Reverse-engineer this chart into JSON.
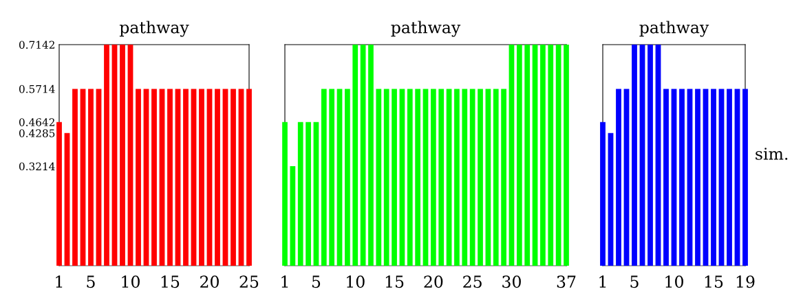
{
  "chart_data": [
    {
      "type": "bar",
      "title": "pathway",
      "x": [
        1,
        2,
        3,
        4,
        5,
        6,
        7,
        8,
        9,
        10,
        11,
        12,
        13,
        14,
        15,
        16,
        17,
        18,
        19,
        20,
        21,
        22,
        23,
        24,
        25
      ],
      "values": [
        0.4642,
        0.4285,
        0.5714,
        0.5714,
        0.5714,
        0.5714,
        0.7142,
        0.7142,
        0.7142,
        0.7142,
        0.5714,
        0.5714,
        0.5714,
        0.5714,
        0.5714,
        0.5714,
        0.5714,
        0.5714,
        0.5714,
        0.5714,
        0.5714,
        0.5714,
        0.5714,
        0.5714,
        0.5714
      ],
      "color": "#ff0000",
      "xlim": [
        1,
        25
      ],
      "xticks": [
        1,
        5,
        10,
        15,
        20,
        25
      ],
      "ylim": [
        0,
        0.7142
      ],
      "yticks": [
        0.3214,
        0.4285,
        0.4642,
        0.5714,
        0.7142
      ],
      "grid": false
    },
    {
      "type": "bar",
      "title": "pathway",
      "x": [
        1,
        2,
        3,
        4,
        5,
        6,
        7,
        8,
        9,
        10,
        11,
        12,
        13,
        14,
        15,
        16,
        17,
        18,
        19,
        20,
        21,
        22,
        23,
        24,
        25,
        26,
        27,
        28,
        29,
        30,
        31,
        32,
        33,
        34,
        35,
        36,
        37
      ],
      "values": [
        0.4642,
        0.3214,
        0.4642,
        0.4642,
        0.4642,
        0.5714,
        0.5714,
        0.5714,
        0.5714,
        0.7142,
        0.7142,
        0.7142,
        0.5714,
        0.5714,
        0.5714,
        0.5714,
        0.5714,
        0.5714,
        0.5714,
        0.5714,
        0.5714,
        0.5714,
        0.5714,
        0.5714,
        0.5714,
        0.5714,
        0.5714,
        0.5714,
        0.5714,
        0.7142,
        0.7142,
        0.7142,
        0.7142,
        0.7142,
        0.7142,
        0.7142,
        0.7142
      ],
      "color": "#00ff00",
      "xlim": [
        1,
        37
      ],
      "xticks": [
        1,
        5,
        10,
        15,
        20,
        25,
        30,
        37
      ],
      "ylim": [
        0,
        0.7142
      ],
      "yticks": [
        0.3214,
        0.4285,
        0.4642,
        0.5714,
        0.7142
      ],
      "tick_labels": "x",
      "grid": false
    },
    {
      "type": "bar",
      "title": "pathway",
      "ylabel": "sim.",
      "x": [
        1,
        2,
        3,
        4,
        5,
        6,
        7,
        8,
        9,
        10,
        11,
        12,
        13,
        14,
        15,
        16,
        17,
        18,
        19
      ],
      "values": [
        0.4642,
        0.4285,
        0.5714,
        0.5714,
        0.7142,
        0.7142,
        0.7142,
        0.7142,
        0.5714,
        0.5714,
        0.5714,
        0.5714,
        0.5714,
        0.5714,
        0.5714,
        0.5714,
        0.5714,
        0.5714,
        0.5714
      ],
      "color": "#0000ff",
      "xlim": [
        1,
        19
      ],
      "xticks": [
        1,
        5,
        10,
        15,
        19
      ],
      "ylim": [
        0,
        0.7142
      ],
      "yticks": [
        0.3214,
        0.4285,
        0.4642,
        0.5714,
        0.7142
      ],
      "tick_labels": "x",
      "grid": false
    }
  ]
}
